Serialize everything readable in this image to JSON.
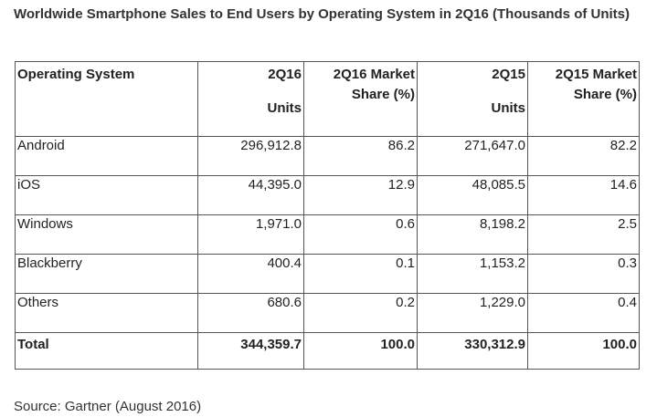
{
  "title": "Worldwide Smartphone Sales to End Users by Operating System in 2Q16 (Thousands of Units)",
  "table": {
    "headers": {
      "os": "Operating System",
      "q216": "2Q16",
      "q216_units": "Units",
      "q216_share": "2Q16 Market Share (%)",
      "q215": "2Q15",
      "q215_units": "Units",
      "q215_share": "2Q15 Market Share (%)"
    },
    "rows": [
      {
        "os": "Android",
        "q216": "296,912.8",
        "q216_share": "86.2",
        "q215": "271,647.0",
        "q215_share": "82.2"
      },
      {
        "os": "iOS",
        "q216": "44,395.0",
        "q216_share": "12.9",
        "q215": "48,085.5",
        "q215_share": "14.6"
      },
      {
        "os": "Windows",
        "q216": "1,971.0",
        "q216_share": "0.6",
        "q215": "8,198.2",
        "q215_share": "2.5"
      },
      {
        "os": "Blackberry",
        "q216": "400.4",
        "q216_share": "0.1",
        "q215": "1,153.2",
        "q215_share": "0.3"
      },
      {
        "os": "Others",
        "q216": "680.6",
        "q216_share": "0.2",
        "q215": "1,229.0",
        "q215_share": "0.4"
      }
    ],
    "total": {
      "os": "Total",
      "q216": "344,359.7",
      "q216_share": "100.0",
      "q215": "330,312.9",
      "q215_share": "100.0"
    }
  },
  "source": "Source: Gartner (August 2016)"
}
